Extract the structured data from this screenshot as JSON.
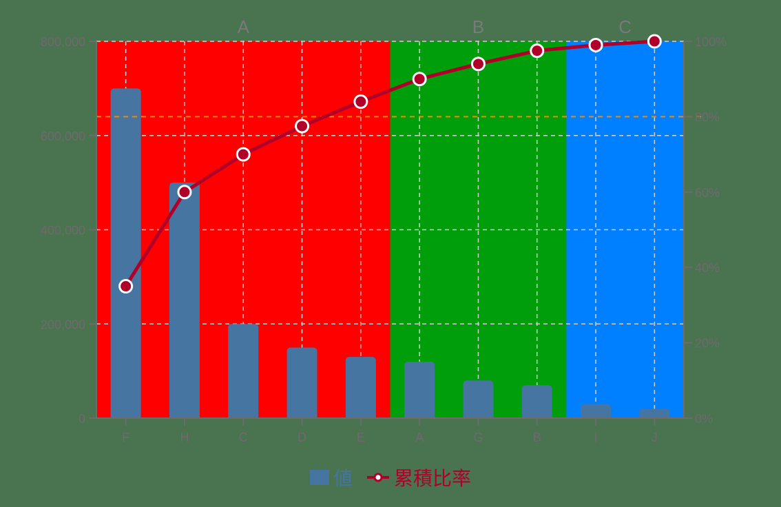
{
  "chart_data": {
    "type": "bar+line",
    "title": "",
    "categories": [
      "F",
      "H",
      "C",
      "D",
      "E",
      "A",
      "G",
      "B",
      "I",
      "J"
    ],
    "series": [
      {
        "name": "値",
        "type": "bar",
        "axis": "left",
        "color": "#4575a0",
        "values": [
          700000,
          500000,
          200000,
          150000,
          130000,
          120000,
          80000,
          70000,
          30000,
          20000
        ]
      },
      {
        "name": "累積比率",
        "type": "line",
        "axis": "right",
        "color": "#b0002a",
        "values": [
          35,
          60,
          70,
          77.5,
          84,
          90,
          94,
          97.5,
          99,
          100
        ]
      }
    ],
    "left_axis": {
      "ylim": [
        0,
        800000
      ],
      "ticks": [
        "0",
        "200,000",
        "400,000",
        "600,000",
        "800,000"
      ],
      "tick_values": [
        0,
        200000,
        400000,
        600000,
        800000
      ]
    },
    "right_axis": {
      "ylim": [
        0,
        100
      ],
      "ticks": [
        "0%",
        "20%",
        "40%",
        "60%",
        "80%",
        "100%"
      ],
      "tick_values": [
        0,
        20,
        40,
        60,
        80,
        100
      ]
    },
    "threshold_line": {
      "value": 80,
      "axis": "right",
      "color": "#f08a00"
    },
    "regions": [
      {
        "label": "A",
        "from": 0,
        "to": 5,
        "color": "#ff0000"
      },
      {
        "label": "B",
        "from": 5,
        "to": 8,
        "color": "#009e0a"
      },
      {
        "label": "C",
        "from": 8,
        "to": 10,
        "color": "#0080ff"
      }
    ],
    "grid": true,
    "legend_position": "bottom"
  },
  "legend": {
    "bar_label": "値",
    "line_label": "累積比率"
  }
}
